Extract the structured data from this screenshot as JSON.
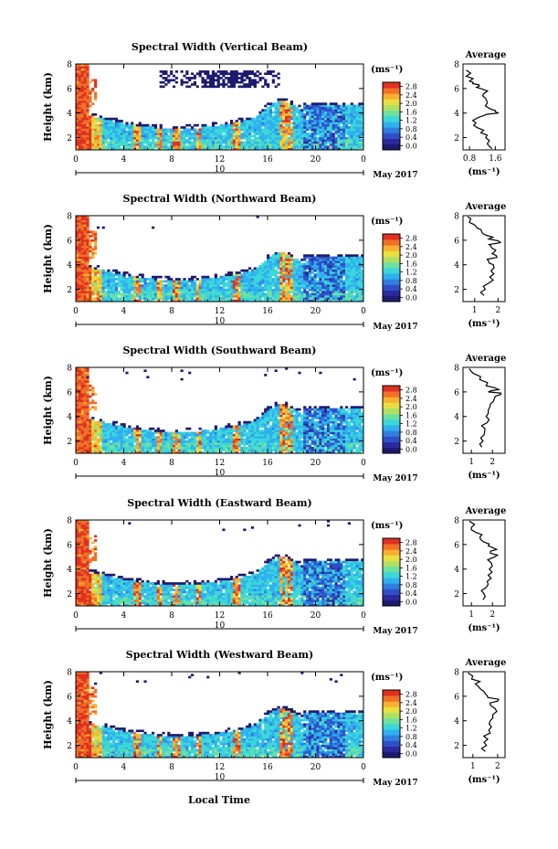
{
  "figure": {
    "xlabel": "Local Time",
    "date_label": "May 2017",
    "colorbar_unit": "(ms⁻¹)",
    "colorbar_ticks": [
      "0.0",
      "0.4",
      "0.8",
      "1.2",
      "1.6",
      "2.0",
      "2.4",
      "2.8"
    ],
    "colormap": [
      "#1d1a6e",
      "#2a2a9c",
      "#2f4fc8",
      "#2f7fe0",
      "#2fb0f0",
      "#3ad8d8",
      "#6fe0a0",
      "#b0e060",
      "#e8e040",
      "#f8b030",
      "#f07028",
      "#e03020"
    ]
  },
  "chart_data": [
    {
      "type": "heatmap",
      "title": "Spectral Width (Vertical Beam)",
      "ylabel": "Height (km)",
      "xticks": [
        "0",
        "4",
        "8",
        "12",
        "16",
        "20",
        "0"
      ],
      "xlim": [
        0,
        24
      ],
      "day_label": "10",
      "yticks": [
        "2",
        "4",
        "6",
        "8"
      ],
      "ylim": [
        1,
        8
      ],
      "colorbar_label": "(ms⁻¹)",
      "colorbar_range": [
        0.0,
        2.8
      ],
      "colorbar_ticks": [
        "0.0",
        "0.4",
        "0.8",
        "1.2",
        "1.6",
        "2.0",
        "2.4",
        "2.8"
      ],
      "upper_echoes": [
        {
          "from": 7,
          "to": 15
        },
        {
          "from": 10.5,
          "to": 17
        }
      ],
      "upper_echo_height": [
        6,
        7.5
      ],
      "profile": {
        "title": "Average",
        "xlabel": "(ms⁻¹)",
        "xticks": [
          "0.8",
          "1.6"
        ],
        "xlim": [
          0.6,
          1.9
        ],
        "yticks": [
          "2",
          "4",
          "6",
          "8"
        ],
        "ylim": [
          1,
          8
        ],
        "height": [
          1.1,
          1.5,
          2.0,
          2.4,
          2.8,
          3.2,
          3.6,
          3.8,
          4.0,
          4.2,
          4.4,
          4.8,
          5.2,
          5.6,
          6.0,
          6.2,
          6.4,
          6.6,
          7.0,
          7.5
        ],
        "width": [
          1.5,
          1.35,
          1.3,
          1.15,
          1.05,
          1.0,
          1.05,
          1.25,
          1.7,
          1.6,
          1.4,
          1.35,
          1.3,
          1.25,
          1.15,
          1.1,
          0.9,
          0.8,
          0.7,
          0.7
        ]
      }
    },
    {
      "type": "heatmap",
      "title": "Spectral Width (Northward Beam)",
      "ylabel": "Height (km)",
      "xticks": [
        "0",
        "4",
        "8",
        "12",
        "16",
        "20",
        "0"
      ],
      "xlim": [
        0,
        24
      ],
      "day_label": "10",
      "yticks": [
        "2",
        "4",
        "6",
        "8"
      ],
      "ylim": [
        1,
        8
      ],
      "colorbar_label": "(ms⁻¹)",
      "colorbar_range": [
        0.0,
        2.8
      ],
      "colorbar_ticks": [
        "0.0",
        "0.4",
        "0.8",
        "1.2",
        "1.6",
        "2.0",
        "2.4",
        "2.8"
      ],
      "upper_echoes": [],
      "upper_echo_height": [
        7,
        8
      ],
      "profile": {
        "title": "Average",
        "xlabel": "(ms⁻¹)",
        "xticks": [
          "1",
          "2"
        ],
        "xlim": [
          0.5,
          2.3
        ],
        "yticks": [
          "2",
          "4",
          "6",
          "8"
        ],
        "ylim": [
          1,
          8
        ],
        "height": [
          1.5,
          2.0,
          2.5,
          3.0,
          3.5,
          4.0,
          4.3,
          4.6,
          4.9,
          5.2,
          5.5,
          5.8,
          6.1,
          6.4,
          6.7,
          7.0,
          7.3,
          7.6,
          7.9
        ],
        "width": [
          1.4,
          1.45,
          1.6,
          1.65,
          1.7,
          1.8,
          1.6,
          1.95,
          1.75,
          1.9,
          1.7,
          2.1,
          1.6,
          1.5,
          1.3,
          1.1,
          0.95,
          0.8,
          0.7
        ]
      }
    },
    {
      "type": "heatmap",
      "title": "Spectral Width (Southward Beam)",
      "ylabel": "Height (km)",
      "xticks": [
        "0",
        "4",
        "8",
        "12",
        "16",
        "20",
        "0"
      ],
      "xlim": [
        0,
        24
      ],
      "day_label": "10",
      "yticks": [
        "2",
        "4",
        "6",
        "8"
      ],
      "ylim": [
        1,
        8
      ],
      "colorbar_label": "(ms⁻¹)",
      "colorbar_range": [
        0.0,
        2.8
      ],
      "colorbar_ticks": [
        "0.0",
        "0.4",
        "0.8",
        "1.2",
        "1.6",
        "2.0",
        "2.4",
        "2.8"
      ],
      "upper_echoes": [],
      "upper_echo_height": [
        7,
        8
      ],
      "profile": {
        "title": "Average",
        "xlabel": "(ms⁻¹)",
        "xticks": [
          "1",
          "2"
        ],
        "xlim": [
          0.6,
          2.6
        ],
        "yticks": [
          "2",
          "4",
          "6",
          "8"
        ],
        "ylim": [
          1,
          8
        ],
        "height": [
          1.5,
          2.0,
          2.5,
          3.0,
          3.5,
          4.0,
          4.5,
          5.0,
          5.5,
          5.8,
          6.0,
          6.2,
          6.5,
          7.0,
          7.5,
          7.9
        ],
        "width": [
          1.5,
          1.55,
          1.6,
          1.65,
          1.75,
          1.7,
          1.8,
          1.9,
          2.1,
          2.4,
          1.8,
          2.3,
          1.7,
          1.4,
          1.1,
          0.9
        ]
      }
    },
    {
      "type": "heatmap",
      "title": "Spectral Width (Eastward Beam)",
      "ylabel": "Height (km)",
      "xticks": [
        "0",
        "4",
        "8",
        "12",
        "16",
        "20",
        "0"
      ],
      "xlim": [
        0,
        24
      ],
      "day_label": "10",
      "yticks": [
        "2",
        "4",
        "6",
        "8"
      ],
      "ylim": [
        1,
        8
      ],
      "colorbar_label": "(ms⁻¹)",
      "colorbar_range": [
        0.0,
        2.8
      ],
      "colorbar_ticks": [
        "0.0",
        "0.4",
        "0.8",
        "1.2",
        "1.6",
        "2.0",
        "2.4",
        "2.8"
      ],
      "upper_echoes": [],
      "upper_echo_height": [
        6,
        8
      ],
      "profile": {
        "title": "Average",
        "xlabel": "(ms⁻¹)",
        "xticks": [
          "1",
          "2"
        ],
        "xlim": [
          0.6,
          2.6
        ],
        "yticks": [
          "2",
          "4",
          "6",
          "8"
        ],
        "ylim": [
          1,
          8
        ],
        "height": [
          1.5,
          2.0,
          2.5,
          3.0,
          3.5,
          4.0,
          4.5,
          5.0,
          5.3,
          5.6,
          5.9,
          6.2,
          6.6,
          7.0,
          7.4,
          7.9
        ],
        "width": [
          1.55,
          1.6,
          1.7,
          1.75,
          1.8,
          1.85,
          1.95,
          2.1,
          1.9,
          2.2,
          1.8,
          1.6,
          1.4,
          1.2,
          1.0,
          0.9
        ]
      }
    },
    {
      "type": "heatmap",
      "title": "Spectral Width (Westward Beam)",
      "ylabel": "Height (km)",
      "xticks": [
        "0",
        "4",
        "8",
        "12",
        "16",
        "20",
        "0"
      ],
      "xlim": [
        0,
        24
      ],
      "day_label": "10",
      "yticks": [
        "2",
        "4",
        "6",
        "8"
      ],
      "ylim": [
        1,
        8
      ],
      "colorbar_label": "(ms⁻¹)",
      "colorbar_range": [
        0.0,
        2.8
      ],
      "colorbar_ticks": [
        "0.0",
        "0.4",
        "0.8",
        "1.2",
        "1.6",
        "2.0",
        "2.4",
        "2.8"
      ],
      "upper_echoes": [],
      "upper_echo_height": [
        6,
        8
      ],
      "profile": {
        "title": "Average",
        "xlabel": "(ms⁻¹)",
        "xticks": [
          "1",
          "2"
        ],
        "xlim": [
          0.6,
          2.3
        ],
        "yticks": [
          "2",
          "4",
          "6",
          "8"
        ],
        "ylim": [
          1,
          8
        ],
        "height": [
          1.5,
          2.0,
          2.5,
          3.0,
          3.5,
          4.0,
          4.5,
          5.0,
          5.3,
          5.6,
          5.9,
          6.2,
          6.6,
          7.0,
          7.4,
          7.9
        ],
        "width": [
          1.5,
          1.55,
          1.6,
          1.7,
          1.75,
          1.7,
          1.8,
          1.9,
          1.7,
          2.0,
          1.6,
          1.5,
          1.3,
          1.1,
          0.95,
          0.8
        ]
      }
    }
  ]
}
